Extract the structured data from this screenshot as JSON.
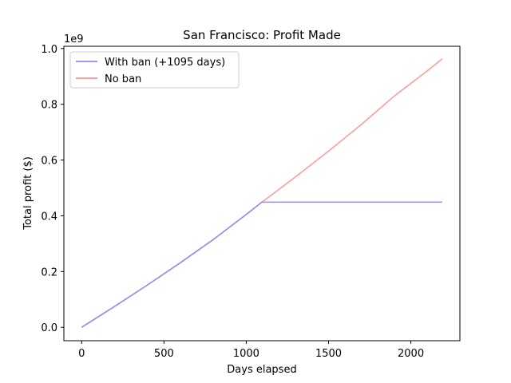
{
  "chart_data": {
    "type": "line",
    "title": "San Francisco: Profit Made",
    "xlabel": "Days elapsed",
    "ylabel": "Total profit ($)",
    "y_offset_label": "1e9",
    "xlim": [
      -108,
      2298
    ],
    "ylim": [
      -0.048,
      1.008
    ],
    "xticks": [
      0,
      500,
      1000,
      1500,
      2000
    ],
    "xtick_labels": [
      "0",
      "500",
      "1000",
      "1500",
      "2000"
    ],
    "yticks": [
      0.0,
      0.2,
      0.4,
      0.6,
      0.8,
      1.0
    ],
    "ytick_labels": [
      "0.0",
      "0.2",
      "0.4",
      "0.6",
      "0.8",
      "1.0"
    ],
    "grid": false,
    "legend_position": "top-left",
    "series": [
      {
        "name": "No ban",
        "color": "#ff9090",
        "x": [
          0,
          200,
          400,
          600,
          800,
          1000,
          1095,
          1300,
          1500,
          1700,
          1900,
          2100,
          2190
        ],
        "y": [
          0.0,
          0.075,
          0.152,
          0.232,
          0.315,
          0.405,
          0.449,
          0.54,
          0.632,
          0.728,
          0.83,
          0.92,
          0.963
        ]
      },
      {
        "name": "With ban (+1095 days)",
        "color": "#8a8aff",
        "x": [
          0,
          200,
          400,
          600,
          800,
          1000,
          1095,
          1300,
          1500,
          1700,
          1900,
          2100,
          2190
        ],
        "y": [
          0.0,
          0.075,
          0.152,
          0.232,
          0.315,
          0.405,
          0.449,
          0.449,
          0.449,
          0.449,
          0.449,
          0.449,
          0.449
        ]
      }
    ]
  }
}
